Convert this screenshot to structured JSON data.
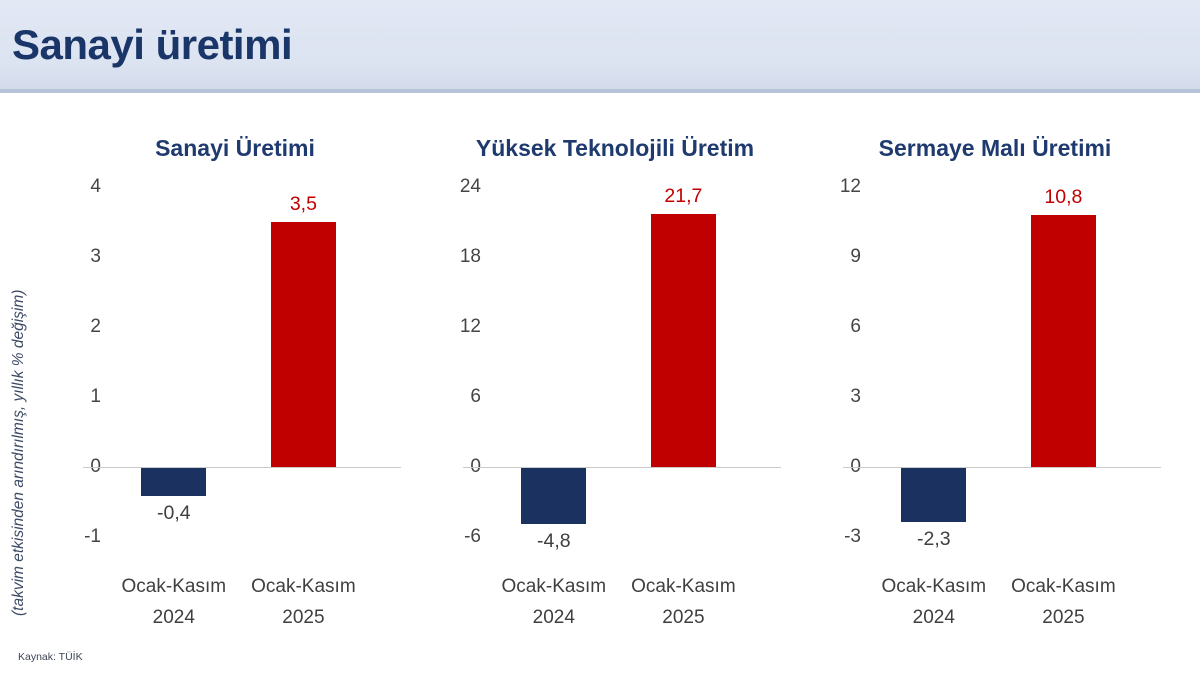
{
  "header": {
    "title": "Sanayi üretimi"
  },
  "y_axis_label": "(takvim etkisinden arındırılmış, yıllık % değişim)",
  "source": "Kaynak: TÜİK",
  "colors": {
    "header_bg": "#dce3f1",
    "title_navy": "#1e3a6e",
    "bar_negative": "#1b3260",
    "bar_positive": "#c00000",
    "label_positive": "#c00000",
    "label_negative": "#3f3f3f",
    "gridline": "#c9c9c9"
  },
  "chart_data": [
    {
      "type": "bar",
      "title": "Sanayi Üretimi",
      "categories": [
        "Ocak-Kasım\n2024",
        "Ocak-Kasım\n2025"
      ],
      "values": [
        -0.4,
        3.5
      ],
      "value_labels": [
        "-0,4",
        "3,5"
      ],
      "yticks": [
        4,
        3,
        2,
        1,
        0,
        -1
      ],
      "ylim": [
        -1,
        4
      ],
      "bar_colors": [
        "#1b3260",
        "#c00000"
      ],
      "grid": "zero-line-only",
      "legend": "none"
    },
    {
      "type": "bar",
      "title": "Yüksek Teknolojili Üretim",
      "categories": [
        "Ocak-Kasım\n2024",
        "Ocak-Kasım\n2025"
      ],
      "values": [
        -4.8,
        21.7
      ],
      "value_labels": [
        "-4,8",
        "21,7"
      ],
      "yticks": [
        24,
        18,
        12,
        6,
        0,
        -6
      ],
      "ylim": [
        -6,
        24
      ],
      "bar_colors": [
        "#1b3260",
        "#c00000"
      ],
      "grid": "zero-line-only",
      "legend": "none"
    },
    {
      "type": "bar",
      "title": "Sermaye Malı Üretimi",
      "categories": [
        "Ocak-Kasım\n2024",
        "Ocak-Kasım\n2025"
      ],
      "values": [
        -2.3,
        10.8
      ],
      "value_labels": [
        "-2,3",
        "10,8"
      ],
      "yticks": [
        12,
        9,
        6,
        3,
        0,
        -3
      ],
      "ylim": [
        -3,
        12
      ],
      "bar_colors": [
        "#1b3260",
        "#c00000"
      ],
      "grid": "zero-line-only",
      "legend": "none"
    }
  ]
}
